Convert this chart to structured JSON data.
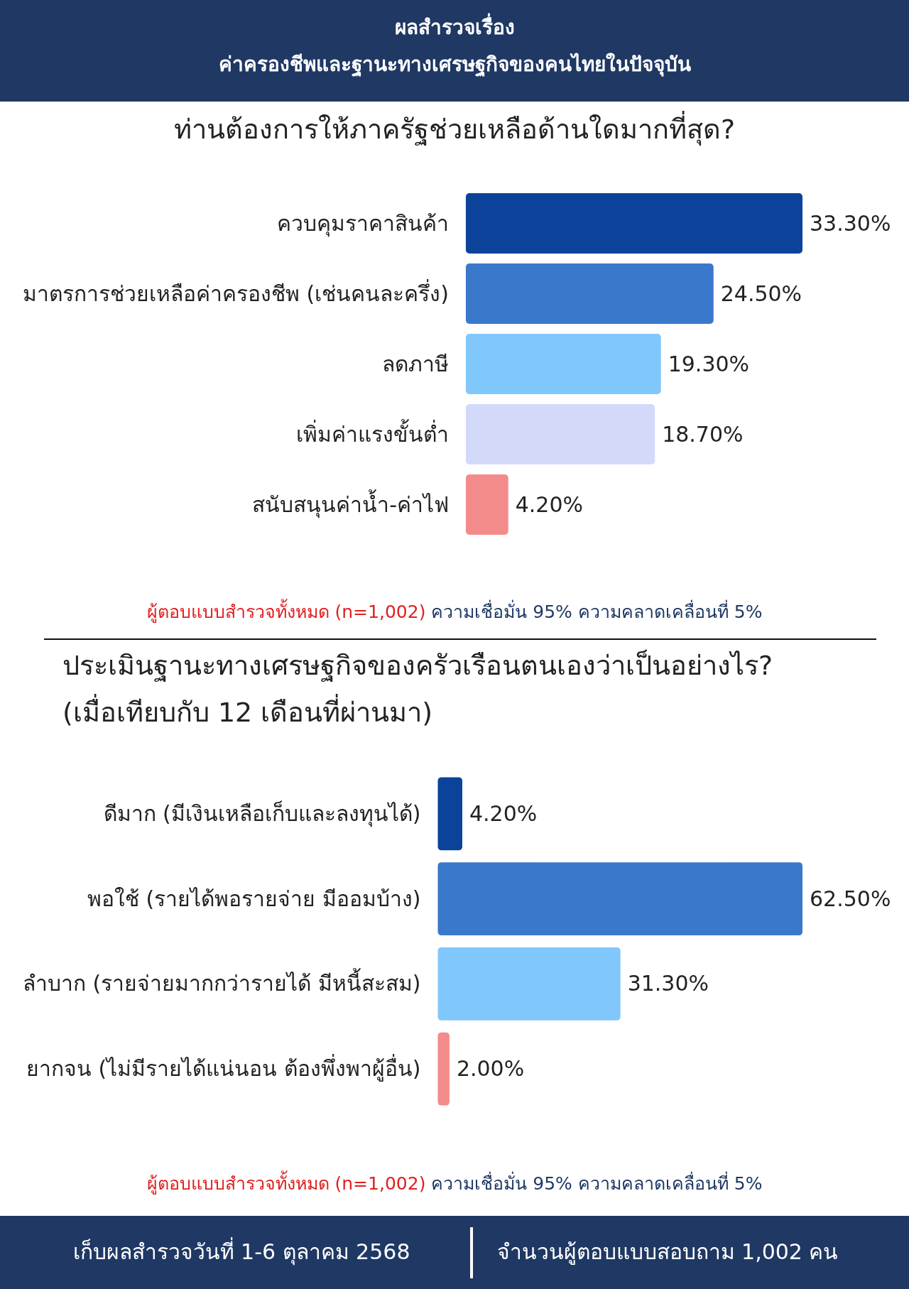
{
  "chart_data": [
    {
      "type": "other",
      "title": "ผลสำรวจเรื่อง",
      "subtitle": "ค่าครองชีพและฐานะทางเศรษฐกิจของคนไทยในปัจจุบัน",
      "annotations": [
        "เก็บผลสำรวจวันที่ 1-6 ตุลาคม 2568",
        "จำนวนผู้ตอบแบบสอบถาม 1,002 คน"
      ]
    },
    {
      "type": "bar",
      "orientation": "horizontal",
      "title": "ท่านต้องการให้ภาครัฐช่วยเหลือด้านใดมากที่สุด?",
      "categories": [
        "ควบคุมราคาสินค้า",
        "มาตรการช่วยเหลือค่าครองชีพ (เช่นคนละครึ่ง)",
        "ลดภาษี",
        "เพิ่มค่าแรงขั้นต่ำ",
        "สนับสนุนค่าน้ำ-ค่าไฟ"
      ],
      "values": [
        33.3,
        24.5,
        19.3,
        18.7,
        4.2
      ],
      "colors": [
        "#0a4399",
        "#3a78cc",
        "#80c8fc",
        "#d3daf9",
        "#f48b8b"
      ],
      "value_labels": [
        "33.30%",
        "24.50%",
        "19.30%",
        "18.70%",
        "4.20%"
      ],
      "annotations": [
        "ผู้ตอบแบบสำรวจทั้งหมด (n=1,002)",
        "ความเชื่อมั่น 95% ความคลาดเคลื่อนที่ 5%"
      ]
    },
    {
      "type": "bar",
      "orientation": "horizontal",
      "title": "ประเมินฐานะทางเศรษฐกิจของครัวเรือนตนเองว่าเป็นอย่างไร?",
      "subtitle": "(เมื่อเทียบกับ 12 เดือนที่ผ่านมา)",
      "categories": [
        "ดีมาก (มีเงินเหลือเก็บและลงทุนได้)",
        "พอใช้ (รายได้พอรายจ่าย มีออมบ้าง)",
        "ลำบาก (รายจ่ายมากกว่ารายได้ มีหนี้สะสม)",
        "ยากจน (ไม่มีรายได้แน่นอน ต้องพึ่งพาผู้อื่น)"
      ],
      "values": [
        4.2,
        62.5,
        31.3,
        2.0
      ],
      "colors": [
        "#0a4399",
        "#3a78cc",
        "#80c8fc",
        "#f48b8b"
      ],
      "value_labels": [
        "4.20%",
        "62.50%",
        "31.30%",
        "2.00%"
      ],
      "annotations": [
        "ผู้ตอบแบบสำรวจทั้งหมด (n=1,002)",
        "ความเชื่อมั่น 95% ความคลาดเคลื่อนที่ 5%"
      ]
    }
  ]
}
